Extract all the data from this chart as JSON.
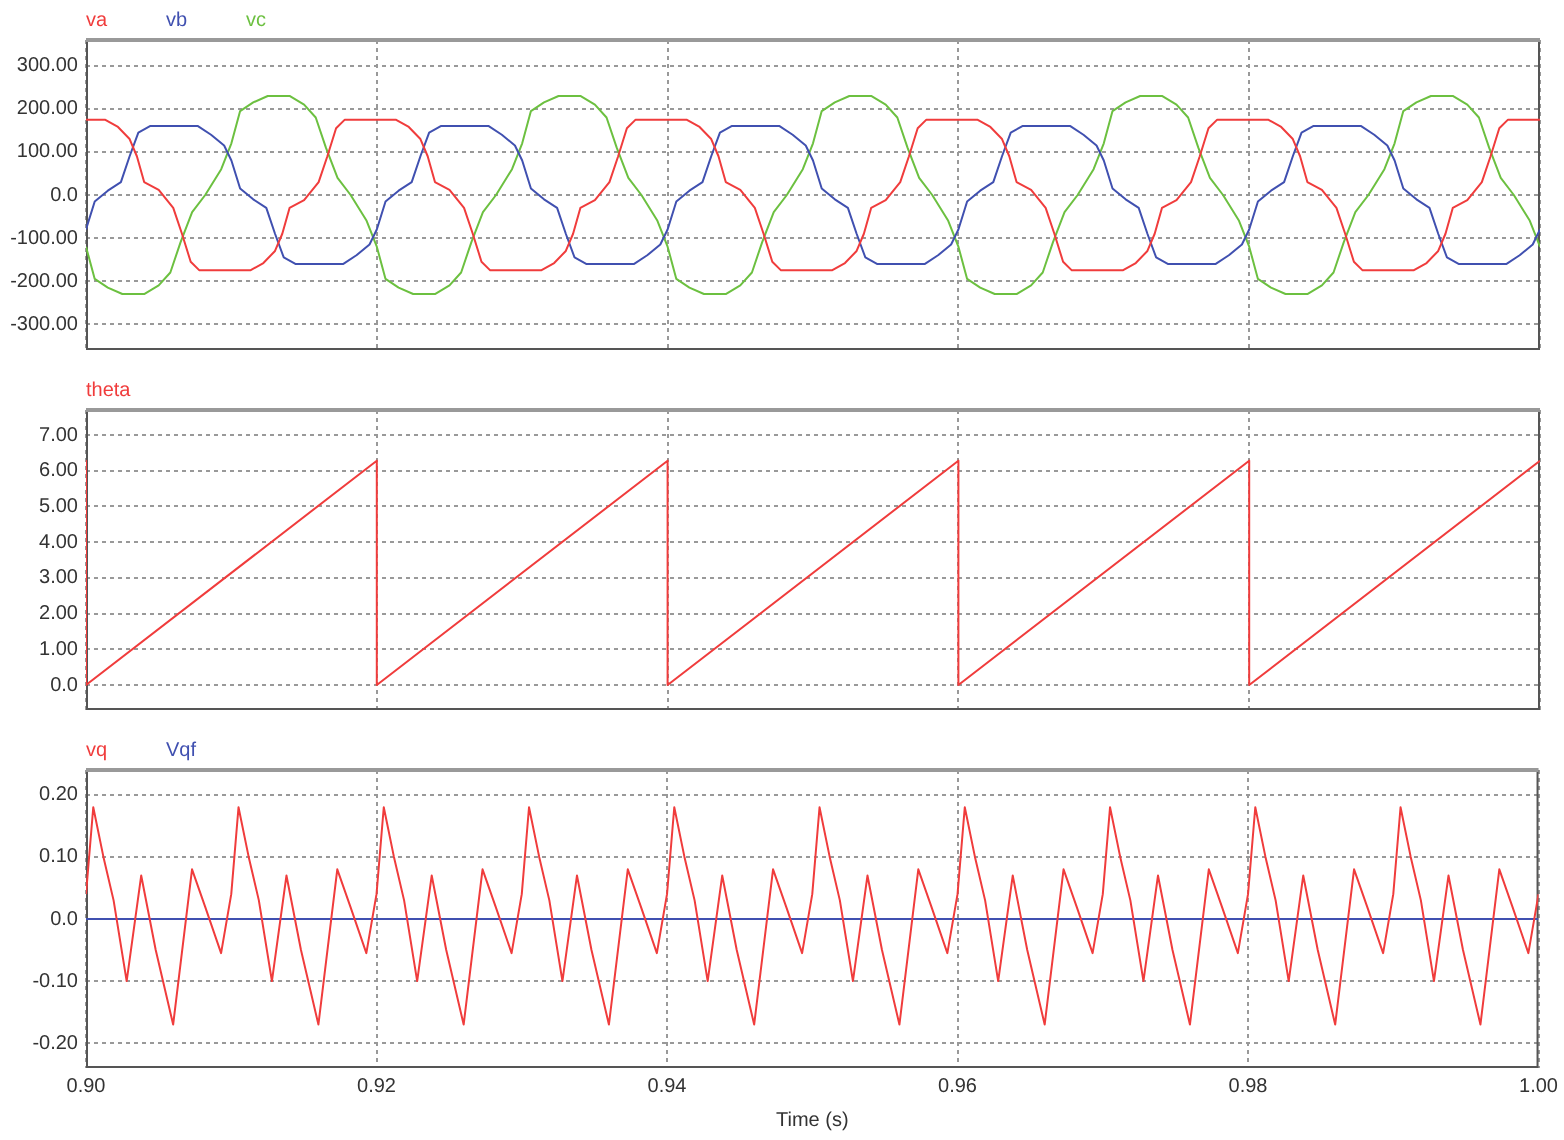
{
  "chart_data": [
    {
      "type": "line",
      "xlim": [
        0.9,
        1.0
      ],
      "xticks": [
        {
          "value": 0.9,
          "label": null
        },
        {
          "value": 0.92,
          "label": null
        },
        {
          "value": 0.94,
          "label": null
        },
        {
          "value": 0.96,
          "label": null
        },
        {
          "value": 0.98,
          "label": null
        },
        {
          "value": 1.0,
          "label": null
        }
      ],
      "ylim": [
        -360,
        360
      ],
      "yticks": [
        {
          "value": -300,
          "label": "-300.00"
        },
        {
          "value": -200,
          "label": "-200.00"
        },
        {
          "value": -100,
          "label": "-100.00"
        },
        {
          "value": 0,
          "label": "0.0"
        },
        {
          "value": 100,
          "label": "100.00"
        },
        {
          "value": 200,
          "label": "200.00"
        },
        {
          "value": 300,
          "label": "300.00"
        }
      ],
      "grid": true,
      "legend": "top left",
      "tick_labels": "y",
      "series": [
        {
          "name": "va",
          "color": "#f03c3c",
          "x": [
            0.9,
            0.9013,
            0.9022,
            0.903,
            0.9035,
            0.904,
            0.905,
            0.906,
            0.9066,
            0.9072,
            0.9078,
            0.9113,
            0.9122,
            0.913,
            0.9135,
            0.914,
            0.915,
            0.916,
            0.9166,
            0.9172,
            0.9178,
            0.92,
            0.9213,
            0.9222,
            0.923,
            0.9235,
            0.924,
            0.925,
            0.926,
            0.9266,
            0.9272,
            0.9278,
            0.9313,
            0.9322,
            0.933,
            0.9335,
            0.934,
            0.935,
            0.936,
            0.9366,
            0.9372,
            0.9378,
            0.94,
            0.9413,
            0.9422,
            0.943,
            0.9435,
            0.944,
            0.945,
            0.946,
            0.9466,
            0.9472,
            0.9478,
            0.9513,
            0.9522,
            0.953,
            0.9535,
            0.954,
            0.955,
            0.956,
            0.9566,
            0.9572,
            0.9578,
            0.96,
            0.9613,
            0.9622,
            0.963,
            0.9635,
            0.964,
            0.965,
            0.966,
            0.9666,
            0.9672,
            0.9678,
            0.9713,
            0.9722,
            0.973,
            0.9735,
            0.974,
            0.975,
            0.976,
            0.9766,
            0.9772,
            0.9778,
            0.98,
            0.9813,
            0.9822,
            0.983,
            0.9835,
            0.984,
            0.985,
            0.986,
            0.9866,
            0.9872,
            0.9878,
            0.9913,
            0.9922,
            0.993,
            0.9935,
            0.994,
            0.995,
            0.996,
            0.9966,
            0.9972,
            0.9978,
            1.0
          ],
          "values": [
            175,
            175,
            158,
            130,
            90,
            30,
            12,
            -30,
            -90,
            -155,
            -175,
            -175,
            -158,
            -130,
            -90,
            -30,
            -12,
            30,
            90,
            155,
            175,
            175,
            175,
            158,
            130,
            90,
            30,
            12,
            -30,
            -90,
            -155,
            -175,
            -175,
            -158,
            -130,
            -90,
            -30,
            -12,
            30,
            90,
            155,
            175,
            175,
            175,
            158,
            130,
            90,
            30,
            12,
            -30,
            -90,
            -155,
            -175,
            -175,
            -158,
            -130,
            -90,
            -30,
            -12,
            30,
            90,
            155,
            175,
            175,
            175,
            158,
            130,
            90,
            30,
            12,
            -30,
            -90,
            -155,
            -175,
            -175,
            -158,
            -130,
            -90,
            -30,
            -12,
            30,
            90,
            155,
            175,
            175,
            175,
            158,
            130,
            90,
            30,
            12,
            -30,
            -90,
            -155,
            -175,
            -175,
            -158,
            -130,
            -90,
            -30,
            -12,
            30,
            90,
            155,
            175,
            175
          ]
        },
        {
          "name": "vb",
          "color": "#4050b0",
          "x": [
            0.9,
            0.9006,
            0.9015,
            0.9024,
            0.903,
            0.9036,
            0.9044,
            0.9077,
            0.9086,
            0.9095,
            0.91,
            0.9106,
            0.9115,
            0.9124,
            0.913,
            0.9136,
            0.9144,
            0.9177,
            0.9186,
            0.9195,
            0.92,
            0.9206,
            0.9215,
            0.9224,
            0.923,
            0.9236,
            0.9244,
            0.9277,
            0.9286,
            0.9295,
            0.93,
            0.9306,
            0.9315,
            0.9324,
            0.933,
            0.9336,
            0.9344,
            0.9377,
            0.9386,
            0.9395,
            0.94,
            0.9406,
            0.9415,
            0.9424,
            0.943,
            0.9436,
            0.9444,
            0.9477,
            0.9486,
            0.9495,
            0.95,
            0.9506,
            0.9515,
            0.9524,
            0.953,
            0.9536,
            0.9544,
            0.9577,
            0.9586,
            0.9595,
            0.96,
            0.9606,
            0.9615,
            0.9624,
            0.963,
            0.9636,
            0.9644,
            0.9677,
            0.9686,
            0.9695,
            0.97,
            0.9706,
            0.9715,
            0.9724,
            0.973,
            0.9736,
            0.9744,
            0.9777,
            0.9786,
            0.9795,
            0.98,
            0.9806,
            0.9815,
            0.9824,
            0.983,
            0.9836,
            0.9844,
            0.9877,
            0.9886,
            0.9895,
            0.99,
            0.9906,
            0.9915,
            0.9924,
            0.993,
            0.9936,
            0.9944,
            0.9977,
            0.9986,
            0.9995,
            1.0
          ],
          "values": [
            -80,
            -15,
            10,
            30,
            90,
            145,
            160,
            160,
            140,
            115,
            80,
            15,
            -10,
            -30,
            -90,
            -145,
            -160,
            -160,
            -140,
            -115,
            -80,
            -15,
            10,
            30,
            90,
            145,
            160,
            160,
            140,
            115,
            80,
            15,
            -10,
            -30,
            -90,
            -145,
            -160,
            -160,
            -140,
            -115,
            -80,
            -15,
            10,
            30,
            90,
            145,
            160,
            160,
            140,
            115,
            80,
            15,
            -10,
            -30,
            -90,
            -145,
            -160,
            -160,
            -140,
            -115,
            -80,
            -15,
            10,
            30,
            90,
            145,
            160,
            160,
            140,
            115,
            80,
            15,
            -10,
            -30,
            -90,
            -145,
            -160,
            -160,
            -140,
            -115,
            -80,
            -15,
            10,
            30,
            90,
            145,
            160,
            160,
            140,
            115,
            80,
            15,
            -10,
            -30,
            -90,
            -145,
            -160,
            -160,
            -140,
            -115,
            -80
          ]
        },
        {
          "name": "vc",
          "color": "#6cc040",
          "x": [
            0.9,
            0.9006,
            0.9015,
            0.9025,
            0.904,
            0.905,
            0.9058,
            0.9065,
            0.9073,
            0.9082,
            0.9093,
            0.91,
            0.9106,
            0.9115,
            0.9125,
            0.914,
            0.915,
            0.9158,
            0.9165,
            0.9173,
            0.9182,
            0.9193,
            0.92,
            0.9206,
            0.9215,
            0.9225,
            0.924,
            0.925,
            0.9258,
            0.9265,
            0.9273,
            0.9282,
            0.9293,
            0.93,
            0.9306,
            0.9315,
            0.9325,
            0.934,
            0.935,
            0.9358,
            0.9365,
            0.9373,
            0.9382,
            0.9393,
            0.94,
            0.9406,
            0.9415,
            0.9425,
            0.944,
            0.945,
            0.9458,
            0.9465,
            0.9473,
            0.9482,
            0.9493,
            0.95,
            0.9506,
            0.9515,
            0.9525,
            0.954,
            0.955,
            0.9558,
            0.9565,
            0.9573,
            0.9582,
            0.9593,
            0.96,
            0.9606,
            0.9615,
            0.9625,
            0.964,
            0.965,
            0.9658,
            0.9665,
            0.9673,
            0.9682,
            0.9693,
            0.97,
            0.9706,
            0.9715,
            0.9725,
            0.974,
            0.975,
            0.9758,
            0.9765,
            0.9773,
            0.9782,
            0.9793,
            0.98,
            0.9806,
            0.9815,
            0.9825,
            0.984,
            0.985,
            0.9858,
            0.9865,
            0.9873,
            0.9882,
            0.9893,
            0.99,
            0.9906,
            0.9915,
            0.9925,
            0.994,
            0.995,
            0.9958,
            0.9965,
            0.9973,
            0.9982,
            0.9993,
            1.0
          ],
          "values": [
            -120,
            -195,
            -215,
            -230,
            -230,
            -210,
            -180,
            -110,
            -40,
            0,
            60,
            120,
            195,
            215,
            230,
            230,
            210,
            180,
            110,
            40,
            0,
            -60,
            -120,
            -195,
            -215,
            -230,
            -230,
            -210,
            -180,
            -110,
            -40,
            0,
            60,
            120,
            195,
            215,
            230,
            230,
            210,
            180,
            110,
            40,
            0,
            -60,
            -120,
            -195,
            -215,
            -230,
            -230,
            -210,
            -180,
            -110,
            -40,
            0,
            60,
            120,
            195,
            215,
            230,
            230,
            210,
            180,
            110,
            40,
            0,
            -60,
            -120,
            -195,
            -215,
            -230,
            -230,
            -210,
            -180,
            -110,
            -40,
            0,
            60,
            120,
            195,
            215,
            230,
            230,
            210,
            180,
            110,
            40,
            0,
            -60,
            -120,
            -195,
            -215,
            -230,
            -230,
            -210,
            -180,
            -110,
            -40,
            0,
            60,
            120,
            195,
            215,
            230,
            230,
            210,
            180,
            110,
            40,
            0,
            -60,
            -120
          ]
        }
      ]
    },
    {
      "type": "line",
      "xlim": [
        0.9,
        1.0
      ],
      "xticks": [
        {
          "value": 0.9,
          "label": null
        },
        {
          "value": 0.92,
          "label": null
        },
        {
          "value": 0.94,
          "label": null
        },
        {
          "value": 0.96,
          "label": null
        },
        {
          "value": 0.98,
          "label": null
        },
        {
          "value": 1.0,
          "label": null
        }
      ],
      "ylim": [
        -0.7,
        7.7
      ],
      "yticks": [
        {
          "value": 0,
          "label": "0.0"
        },
        {
          "value": 1,
          "label": "1.00"
        },
        {
          "value": 2,
          "label": "2.00"
        },
        {
          "value": 3,
          "label": "3.00"
        },
        {
          "value": 4,
          "label": "4.00"
        },
        {
          "value": 5,
          "label": "5.00"
        },
        {
          "value": 6,
          "label": "6.00"
        },
        {
          "value": 7,
          "label": "7.00"
        }
      ],
      "grid": true,
      "legend": "top left",
      "tick_labels": "y",
      "series": [
        {
          "name": "theta",
          "color": "#f03c3c",
          "x": [
            0.9,
            0.9,
            0.92,
            0.92,
            0.94,
            0.94,
            0.96,
            0.96,
            0.98,
            0.98,
            1.0
          ],
          "values": [
            6.28,
            0,
            6.28,
            0,
            6.28,
            0,
            6.28,
            0,
            6.28,
            0,
            6.28
          ]
        }
      ]
    },
    {
      "type": "line",
      "xlabel": "Time (s)",
      "xlim": [
        0.9,
        1.0
      ],
      "xticks": [
        {
          "value": 0.9,
          "label": "0.90"
        },
        {
          "value": 0.92,
          "label": "0.92"
        },
        {
          "value": 0.94,
          "label": "0.94"
        },
        {
          "value": 0.96,
          "label": "0.96"
        },
        {
          "value": 0.98,
          "label": "0.98"
        },
        {
          "value": 1.0,
          "label": "1.00"
        }
      ],
      "ylim": [
        -0.24,
        0.24
      ],
      "yticks": [
        {
          "value": -0.2,
          "label": "-0.20"
        },
        {
          "value": -0.1,
          "label": "-0.10"
        },
        {
          "value": 0,
          "label": "0.0"
        },
        {
          "value": 0.1,
          "label": "0.10"
        },
        {
          "value": 0.2,
          "label": "0.20"
        }
      ],
      "grid": true,
      "legend": "top left",
      "series": [
        {
          "name": "vq",
          "color": "#f03c3c",
          "x": [
            0.9,
            0.9005,
            0.9012,
            0.9019,
            0.9028,
            0.9038,
            0.9048,
            0.906,
            0.9073,
            0.9082,
            0.9093,
            0.91,
            0.9105,
            0.9112,
            0.9119,
            0.9128,
            0.9138,
            0.9148,
            0.916,
            0.9173,
            0.9182,
            0.9193,
            0.92,
            0.9205,
            0.9212,
            0.9219,
            0.9228,
            0.9238,
            0.9248,
            0.926,
            0.9273,
            0.9282,
            0.9293,
            0.93,
            0.9305,
            0.9312,
            0.9319,
            0.9328,
            0.9338,
            0.9348,
            0.936,
            0.9373,
            0.9382,
            0.9393,
            0.94,
            0.9405,
            0.9412,
            0.9419,
            0.9428,
            0.9438,
            0.9448,
            0.946,
            0.9473,
            0.9482,
            0.9493,
            0.95,
            0.9505,
            0.9512,
            0.9519,
            0.9528,
            0.9538,
            0.9548,
            0.956,
            0.9573,
            0.9582,
            0.9593,
            0.96,
            0.9605,
            0.9612,
            0.9619,
            0.9628,
            0.9638,
            0.9648,
            0.966,
            0.9673,
            0.9682,
            0.9693,
            0.97,
            0.9705,
            0.9712,
            0.9719,
            0.9728,
            0.9738,
            0.9748,
            0.976,
            0.9773,
            0.9782,
            0.9793,
            0.98,
            0.9805,
            0.9812,
            0.9819,
            0.9828,
            0.9838,
            0.9848,
            0.986,
            0.9873,
            0.9882,
            0.9893,
            0.99,
            0.9905,
            0.9912,
            0.9919,
            0.9928,
            0.9938,
            0.9948,
            0.996,
            0.9973,
            0.9982,
            0.9993,
            1.0
          ],
          "values": [
            0.04,
            0.18,
            0.1,
            0.03,
            -0.1,
            0.07,
            -0.05,
            -0.17,
            0.08,
            0.02,
            -0.055,
            0.04,
            0.18,
            0.1,
            0.03,
            -0.1,
            0.07,
            -0.05,
            -0.17,
            0.08,
            0.02,
            -0.055,
            0.04,
            0.18,
            0.1,
            0.03,
            -0.1,
            0.07,
            -0.05,
            -0.17,
            0.08,
            0.02,
            -0.055,
            0.04,
            0.18,
            0.1,
            0.03,
            -0.1,
            0.07,
            -0.05,
            -0.17,
            0.08,
            0.02,
            -0.055,
            0.04,
            0.18,
            0.1,
            0.03,
            -0.1,
            0.07,
            -0.05,
            -0.17,
            0.08,
            0.02,
            -0.055,
            0.04,
            0.18,
            0.1,
            0.03,
            -0.1,
            0.07,
            -0.05,
            -0.17,
            0.08,
            0.02,
            -0.055,
            0.04,
            0.18,
            0.1,
            0.03,
            -0.1,
            0.07,
            -0.05,
            -0.17,
            0.08,
            0.02,
            -0.055,
            0.04,
            0.18,
            0.1,
            0.03,
            -0.1,
            0.07,
            -0.05,
            -0.17,
            0.08,
            0.02,
            -0.055,
            0.04,
            0.18,
            0.1,
            0.03,
            -0.1,
            0.07,
            -0.05,
            -0.17,
            0.08,
            0.02,
            -0.055,
            0.04,
            0.18,
            0.1,
            0.03,
            -0.1,
            0.07,
            -0.05,
            -0.17,
            0.08,
            0.02,
            -0.055,
            0.04
          ]
        },
        {
          "name": "Vqf",
          "color": "#4050b0",
          "x": [
            0.9,
            1.0
          ],
          "values": [
            0,
            0
          ]
        }
      ]
    }
  ]
}
